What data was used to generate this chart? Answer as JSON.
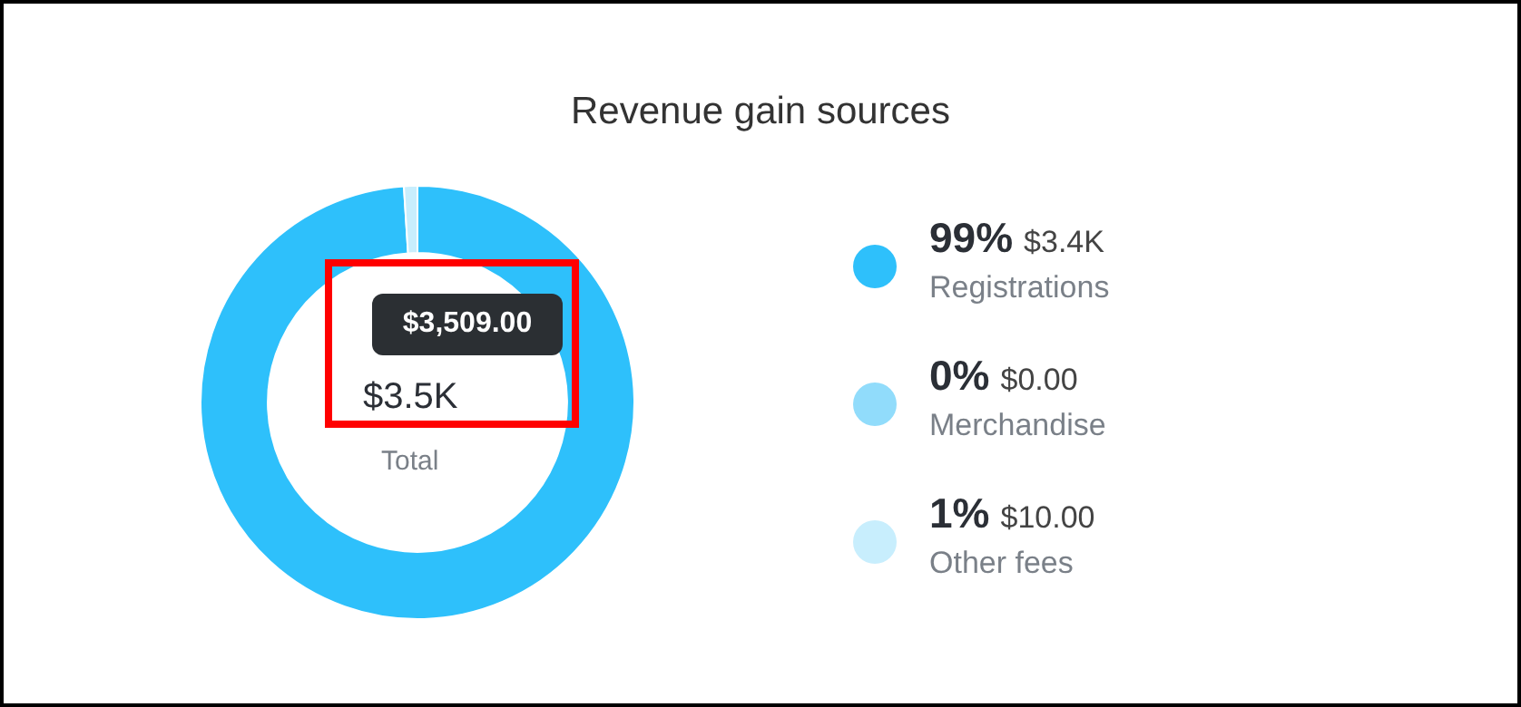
{
  "chart_data": {
    "type": "donut",
    "title": "Revenue gain sources",
    "categories": [
      "Registrations",
      "Merchandise",
      "Other fees"
    ],
    "values": [
      99,
      0,
      1
    ],
    "colors": [
      "#2ec0fb",
      "#91dcfb",
      "#c8eefd"
    ],
    "value_labels": [
      "99%",
      "0%",
      "1%"
    ],
    "legend": "right",
    "annotations": [
      "$3.4K",
      "$0.00",
      "$10.00",
      "$3,509.00",
      "$3.5K",
      "Total"
    ]
  }
}
